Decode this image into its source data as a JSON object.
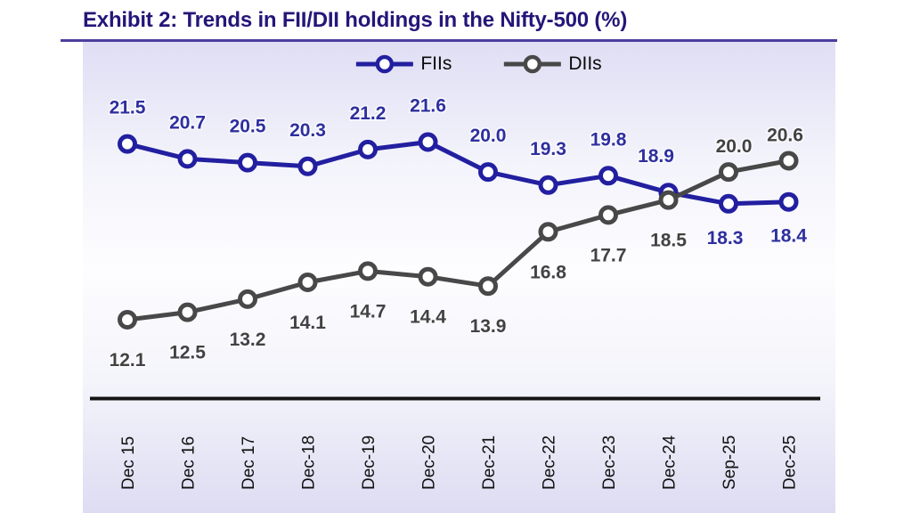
{
  "header": {
    "title": "Exhibit 2: Trends in FII/DII holdings in the Nifty-500 (%)"
  },
  "colors": {
    "title": "#241679",
    "title_underline": "#4C3E9D",
    "axis_line": "#141414",
    "tick_label": "#111111",
    "plot_bg_top": "#DFDEF4",
    "plot_bg_mid": "#FDFDFF",
    "plot_bg_bottom": "#DDDCF2",
    "fii_line": "#221FA0",
    "dii_line": "#484848",
    "fii_label": "#2E2F9D",
    "dii_label": "#424242",
    "marker_fill": "#FFFFFF"
  },
  "chart_data": {
    "type": "line",
    "title": "Exhibit 2: Trends in FII/DII holdings in the Nifty-500 (%)",
    "xlabel": "",
    "ylabel": "",
    "ylim": [
      11.0,
      23.8
    ],
    "grid": false,
    "legend_position": "top-center",
    "marker": "open-circle",
    "categories": [
      "Dec 15",
      "Dec 16",
      "Dec 17",
      "Dec-18",
      "Dec-19",
      "Dec-20",
      "Dec-21",
      "Dec-22",
      "Dec-23",
      "Dec-24",
      "Sep-25",
      "Dec-25"
    ],
    "series": [
      {
        "name": "FIIs",
        "color": "#221FA0",
        "label_color": "#2E2F9D",
        "values": [
          21.5,
          20.7,
          20.5,
          20.3,
          21.2,
          21.6,
          20.0,
          19.3,
          19.8,
          18.9,
          18.3,
          18.4
        ],
        "label_side": [
          "above",
          "above",
          "above",
          "above",
          "above",
          "above",
          "above",
          "above",
          "above",
          "above",
          "below",
          "below"
        ]
      },
      {
        "name": "DIIs",
        "color": "#484848",
        "label_color": "#424242",
        "values": [
          12.1,
          12.5,
          13.2,
          14.1,
          14.7,
          14.4,
          13.9,
          16.8,
          17.7,
          18.5,
          20.0,
          20.6
        ],
        "label_side": [
          "below",
          "below",
          "below",
          "below",
          "below",
          "below",
          "below",
          "below",
          "below",
          "below",
          "above",
          "above"
        ]
      }
    ]
  }
}
